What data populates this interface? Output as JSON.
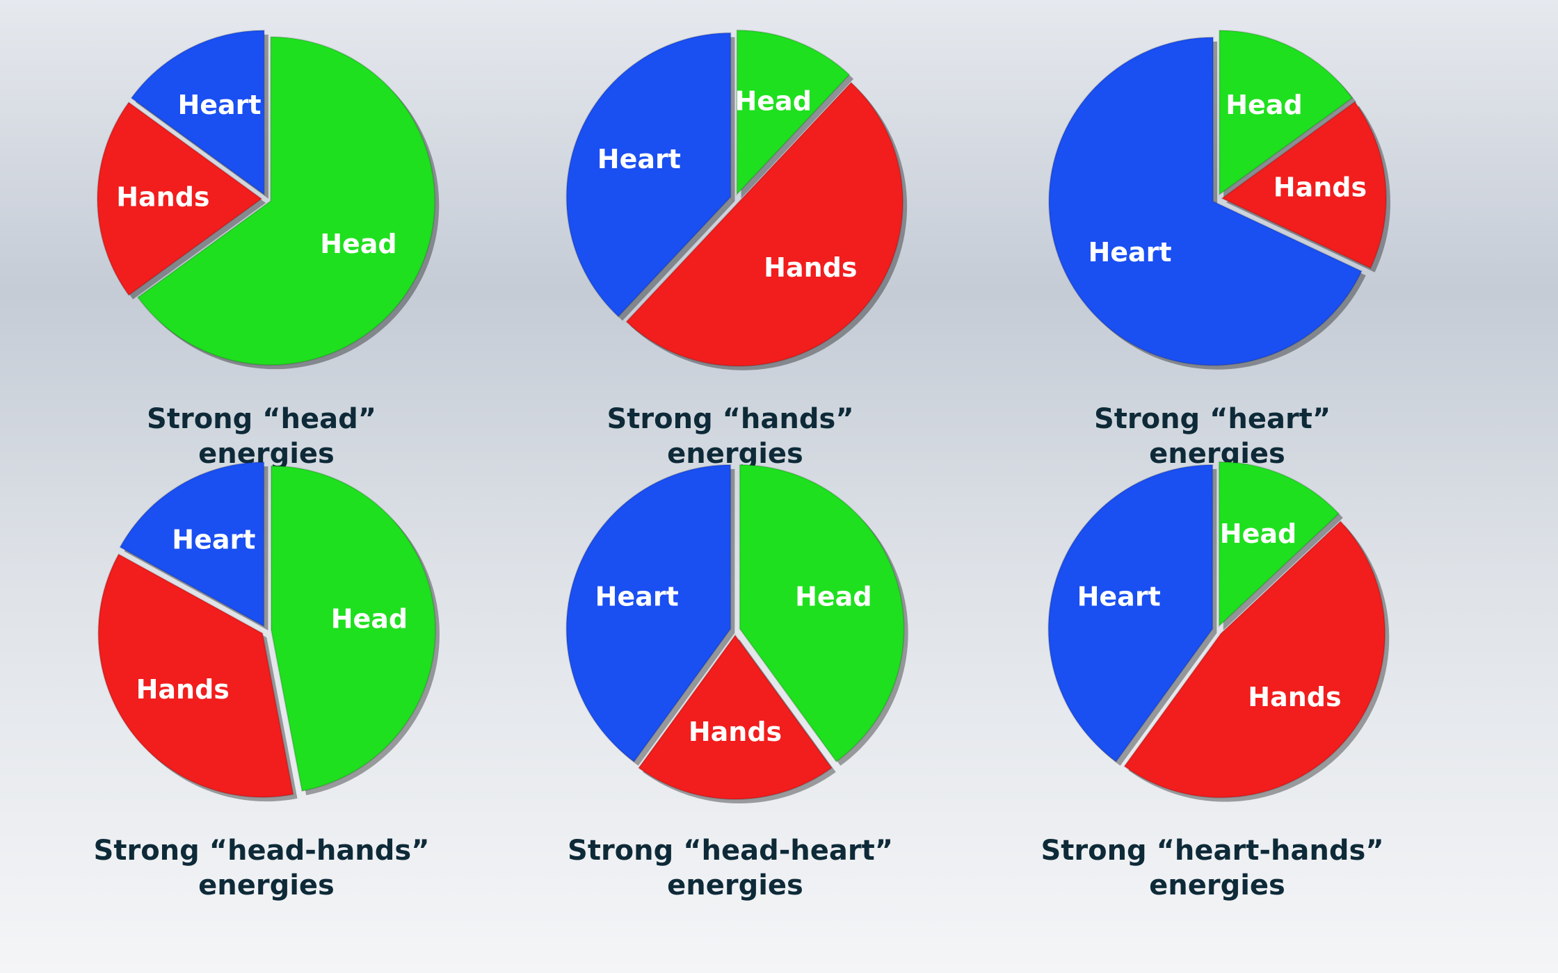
{
  "chart_data": [
    {
      "type": "pie",
      "title": "Strong “head” energies",
      "categories": [
        "Head",
        "Hands",
        "Heart"
      ],
      "values": [
        65,
        20,
        15
      ],
      "colors": [
        "#1fe01f",
        "#f21d1d",
        "#1a4ff2"
      ]
    },
    {
      "type": "pie",
      "title": "Strong “hands” energies",
      "categories": [
        "Head",
        "Hands",
        "Heart"
      ],
      "values": [
        12,
        50,
        38
      ],
      "colors": [
        "#1fe01f",
        "#f21d1d",
        "#1a4ff2"
      ]
    },
    {
      "type": "pie",
      "title": "Strong “heart” energies",
      "categories": [
        "Head",
        "Hands",
        "Heart"
      ],
      "values": [
        15,
        17,
        68
      ],
      "colors": [
        "#1fe01f",
        "#f21d1d",
        "#1a4ff2"
      ]
    },
    {
      "type": "pie",
      "title": "Strong “head-hands” energies",
      "categories": [
        "Head",
        "Hands",
        "Heart"
      ],
      "values": [
        47,
        36,
        17
      ],
      "colors": [
        "#1fe01f",
        "#f21d1d",
        "#1a4ff2"
      ]
    },
    {
      "type": "pie",
      "title": "Strong “head-heart” energies",
      "categories": [
        "Head",
        "Hands",
        "Heart"
      ],
      "values": [
        40,
        20,
        40
      ],
      "colors": [
        "#1fe01f",
        "#f21d1d",
        "#1a4ff2"
      ]
    },
    {
      "type": "pie",
      "title": "Strong “heart-hands” energies",
      "categories": [
        "Head",
        "Hands",
        "Heart"
      ],
      "values": [
        13,
        47,
        40
      ],
      "colors": [
        "#1fe01f",
        "#f21d1d",
        "#1a4ff2"
      ]
    }
  ]
}
